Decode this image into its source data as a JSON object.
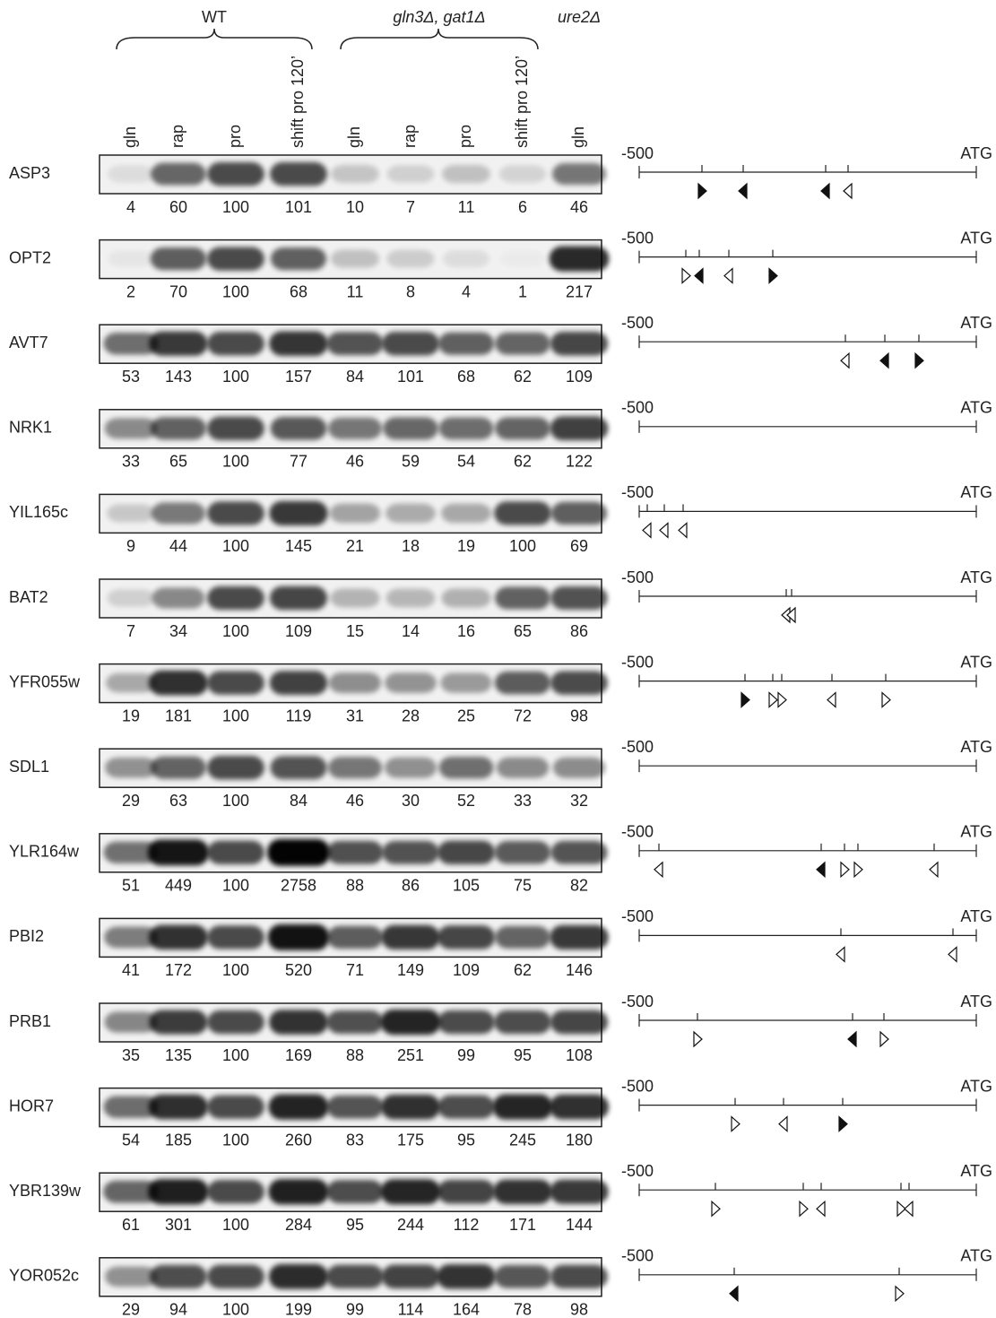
{
  "header": {
    "groups": [
      "WT",
      "gln3Δ, gat1Δ",
      "ure2Δ"
    ],
    "lanes": [
      "gln",
      "rap",
      "pro",
      "shift pro 120’",
      "gln",
      "rap",
      "pro",
      "shift pro 120’",
      "gln"
    ]
  },
  "rows": [
    {
      "gene": "ASP3",
      "values": [
        4,
        60,
        100,
        101,
        10,
        7,
        11,
        6,
        46
      ],
      "map_start": "-500",
      "map_end": "ATG"
    },
    {
      "gene": "OPT2",
      "values": [
        2,
        70,
        100,
        68,
        11,
        8,
        4,
        1,
        217
      ],
      "map_start": "-500",
      "map_end": "ATG"
    },
    {
      "gene": "AVT7",
      "values": [
        53,
        143,
        100,
        157,
        84,
        101,
        68,
        62,
        109
      ],
      "map_start": "-500",
      "map_end": "ATG"
    },
    {
      "gene": "NRK1",
      "values": [
        33,
        65,
        100,
        77,
        46,
        59,
        54,
        62,
        122
      ],
      "map_start": "-500",
      "map_end": "ATG"
    },
    {
      "gene": "YIL165c",
      "values": [
        9,
        44,
        100,
        145,
        21,
        18,
        19,
        100,
        69
      ],
      "map_start": "-500",
      "map_end": "ATG"
    },
    {
      "gene": "BAT2",
      "values": [
        7,
        34,
        100,
        109,
        15,
        14,
        16,
        65,
        86
      ],
      "map_start": "-500",
      "map_end": "ATG"
    },
    {
      "gene": "YFR055w",
      "values": [
        19,
        181,
        100,
        119,
        31,
        28,
        25,
        72,
        98
      ],
      "map_start": "-500",
      "map_end": "ATG"
    },
    {
      "gene": "SDL1",
      "values": [
        29,
        63,
        100,
        84,
        46,
        30,
        52,
        33,
        32
      ],
      "map_start": "-500",
      "map_end": "ATG"
    },
    {
      "gene": "YLR164w",
      "values": [
        51,
        449,
        100,
        2758,
        88,
        86,
        105,
        75,
        82
      ],
      "map_start": "-500",
      "map_end": "ATG"
    },
    {
      "gene": "PBI2",
      "values": [
        41,
        172,
        100,
        520,
        71,
        149,
        109,
        62,
        146
      ],
      "map_start": "-500",
      "map_end": "ATG"
    },
    {
      "gene": "PRB1",
      "values": [
        35,
        135,
        100,
        169,
        88,
        251,
        99,
        95,
        108
      ],
      "map_start": "-500",
      "map_end": "ATG"
    },
    {
      "gene": "HOR7",
      "values": [
        54,
        185,
        100,
        260,
        83,
        175,
        95,
        245,
        180
      ],
      "map_start": "-500",
      "map_end": "ATG"
    },
    {
      "gene": "YBR139w",
      "values": [
        61,
        301,
        100,
        284,
        95,
        244,
        112,
        171,
        144
      ],
      "map_start": "-500",
      "map_end": "ATG"
    },
    {
      "gene": "YOR052c",
      "values": [
        29,
        94,
        100,
        199,
        99,
        114,
        164,
        78,
        98
      ],
      "map_start": "-500",
      "map_end": "ATG"
    }
  ]
}
